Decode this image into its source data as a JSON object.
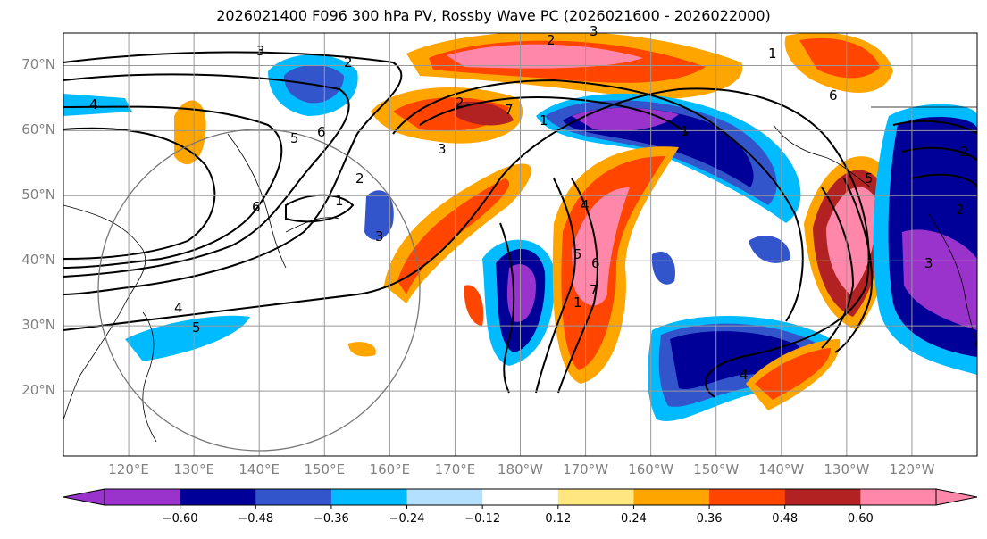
{
  "title": "2026021400 F096 300 hPa PV, Rossby Wave PC (2026021600 - 2026022000)",
  "lat_labels": [
    "70°N",
    "60°N",
    "50°N",
    "40°N",
    "30°N",
    "20°N"
  ],
  "lat_values": [
    70,
    60,
    50,
    40,
    30,
    20
  ],
  "lon_labels": [
    "120°E",
    "130°E",
    "140°E",
    "150°E",
    "160°E",
    "170°E",
    "180°W",
    "170°W",
    "160°W",
    "150°W",
    "140°W",
    "130°W",
    "120°W"
  ],
  "lon_values": [
    120,
    130,
    140,
    150,
    160,
    170,
    180,
    190,
    200,
    210,
    220,
    230,
    240
  ],
  "map_extent": {
    "lon_min": 110,
    "lon_max": 250,
    "lat_min": 10,
    "lat_max": 75
  },
  "colorbar": {
    "colors": [
      "#9933cc",
      "#000099",
      "#3355cc",
      "#00bbff",
      "#b3e0ff",
      "#ffffff",
      "#ffe680",
      "#ffa500",
      "#ff4500",
      "#b22222",
      "#ff88aa"
    ],
    "tick_labels": [
      "−0.60",
      "−0.48",
      "−0.36",
      "−0.24",
      "−0.12",
      "0.12",
      "0.24",
      "0.36",
      "0.48",
      "0.60"
    ],
    "tick_values": [
      -0.6,
      -0.48,
      -0.36,
      -0.24,
      -0.12,
      0.12,
      0.24,
      0.36,
      0.48,
      0.6
    ],
    "extend": "both"
  },
  "contour_labels": [
    "2",
    "3",
    "4",
    "5",
    "6",
    "7",
    "1",
    "2",
    "3",
    "4",
    "5",
    "6",
    "1",
    "2",
    "3",
    "4",
    "5",
    "6",
    "7",
    "1",
    "2",
    "3",
    "4",
    "5",
    "6",
    "1",
    "2",
    "3",
    "2",
    "1"
  ],
  "shading_colors": {
    "neg_strong": "#9933cc",
    "neg_deep": "#000099",
    "neg_mid": "#3355cc",
    "neg_light": "#00bbff",
    "neg_pale": "#b3e0ff",
    "pos_pale": "#ffe680",
    "pos_light": "#ffa500",
    "pos_mid": "#ff4500",
    "pos_deep": "#b22222",
    "pos_strong": "#ff88aa"
  }
}
